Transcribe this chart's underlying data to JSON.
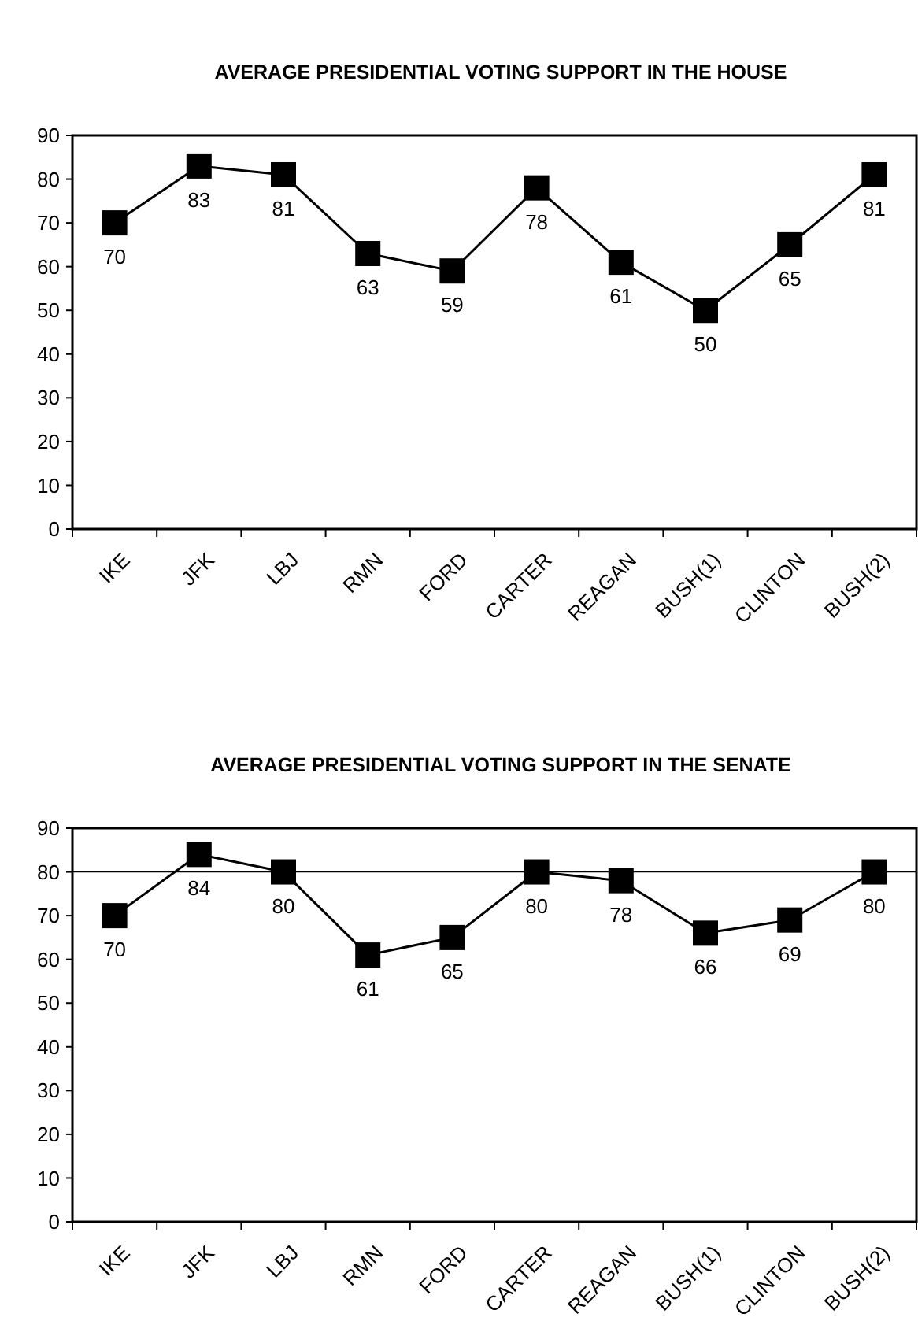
{
  "chart_data": [
    {
      "type": "line",
      "title": "AVERAGE PRESIDENTIAL VOTING SUPPORT IN THE HOUSE",
      "categories": [
        "IKE",
        "JFK",
        "LBJ",
        "RMN",
        "FORD",
        "CARTER",
        "REAGAN",
        "BUSH(1)",
        "CLINTON",
        "BUSH(2)"
      ],
      "series": [
        {
          "color": "#000000",
          "values": [
            70,
            83,
            81,
            63,
            59,
            78,
            61,
            50,
            65,
            81
          ]
        }
      ],
      "ylim": [
        0,
        90
      ],
      "yticks": [
        0,
        10,
        20,
        30,
        40,
        50,
        60,
        70,
        80,
        90
      ],
      "marker": "square",
      "line_style": "solid",
      "data_labels": true
    },
    {
      "type": "line",
      "title": "AVERAGE PRESIDENTIAL VOTING SUPPORT IN THE SENATE",
      "categories": [
        "IKE",
        "JFK",
        "LBJ",
        "RMN",
        "FORD",
        "CARTER",
        "REAGAN",
        "BUSH(1)",
        "CLINTON",
        "BUSH(2)"
      ],
      "series": [
        {
          "color": "#000000",
          "values": [
            70,
            84,
            80,
            61,
            65,
            80,
            78,
            66,
            69,
            80
          ]
        }
      ],
      "ylim": [
        0,
        90
      ],
      "yticks": [
        0,
        10,
        20,
        30,
        40,
        50,
        60,
        70,
        80,
        90
      ],
      "marker": "square",
      "line_style": "solid",
      "data_labels": true,
      "ref_lines": [
        {
          "axis": "y",
          "value": 80,
          "color": "#000000"
        }
      ]
    }
  ]
}
